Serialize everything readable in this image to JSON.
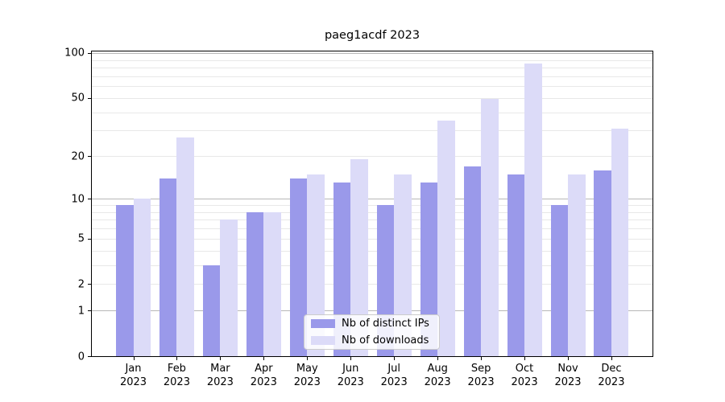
{
  "title": "paeg1acdf 2023",
  "chart_data": {
    "type": "bar",
    "title": "paeg1acdf 2023",
    "categories": [
      "Jan",
      "Feb",
      "Mar",
      "Apr",
      "May",
      "Jun",
      "Jul",
      "Aug",
      "Sep",
      "Oct",
      "Nov",
      "Dec"
    ],
    "year_label": "2023",
    "series": [
      {
        "name": "Nb of distinct IPs",
        "color": "#9a99ea",
        "values": [
          9,
          14,
          3,
          8,
          14,
          13,
          9,
          13,
          17,
          15,
          9,
          16
        ]
      },
      {
        "name": "Nb of downloads",
        "color": "#dcdbf8",
        "values": [
          10,
          27,
          7,
          8,
          15,
          19,
          15,
          35,
          49,
          85,
          15,
          31
        ]
      }
    ],
    "xlabel": "",
    "ylabel": "",
    "yscale": "log1p",
    "yticks": [
      0,
      1,
      2,
      5,
      10,
      20,
      50,
      100
    ],
    "ylim": [
      0,
      102.5
    ],
    "grid": {
      "major": [
        1,
        10,
        100
      ],
      "minor": [
        2,
        3,
        4,
        5,
        6,
        7,
        8,
        9,
        20,
        30,
        40,
        50,
        60,
        70,
        80,
        90
      ]
    },
    "legend_position": "lower center"
  },
  "colors": {
    "bar_ips": "#9a99ea",
    "bar_downloads": "#dcdbf8",
    "grid_major": "#b8b8b8",
    "grid_minor": "#e8e8e8",
    "axis": "#000000",
    "legend_border": "#cccccc",
    "legend_bg": "#ffffff",
    "text": "#000000"
  }
}
